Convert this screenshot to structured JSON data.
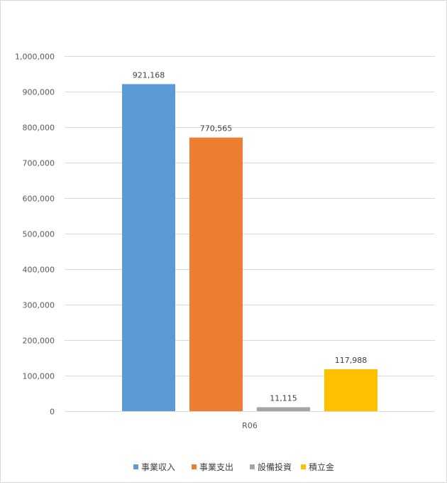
{
  "chart_data": {
    "type": "bar",
    "title": "",
    "xlabel": "",
    "ylabel": "",
    "categories": [
      "R06"
    ],
    "series": [
      {
        "name": "事業収入",
        "values": [
          921168
        ],
        "label": "921,168",
        "color": "#5b9bd5"
      },
      {
        "name": "事業支出",
        "values": [
          770565
        ],
        "label": "770,565",
        "color": "#ed7d31"
      },
      {
        "name": "設備投資",
        "values": [
          11115
        ],
        "label": "11,115",
        "color": "#a5a5a5"
      },
      {
        "name": "積立金",
        "values": [
          117988
        ],
        "label": "117,988",
        "color": "#ffc000"
      }
    ],
    "ylim": [
      0,
      1000000
    ],
    "yticks": [
      {
        "value": 0,
        "label": "0"
      },
      {
        "value": 100000,
        "label": "100,000"
      },
      {
        "value": 200000,
        "label": "200,000"
      },
      {
        "value": 300000,
        "label": "300,000"
      },
      {
        "value": 400000,
        "label": "400,000"
      },
      {
        "value": 500000,
        "label": "500,000"
      },
      {
        "value": 600000,
        "label": "600,000"
      },
      {
        "value": 700000,
        "label": "700,000"
      },
      {
        "value": 800000,
        "label": "800,000"
      },
      {
        "value": 900000,
        "label": "900,000"
      },
      {
        "value": 1000000,
        "label": "1,000,000"
      }
    ],
    "grid": true,
    "legend": "bottom"
  }
}
